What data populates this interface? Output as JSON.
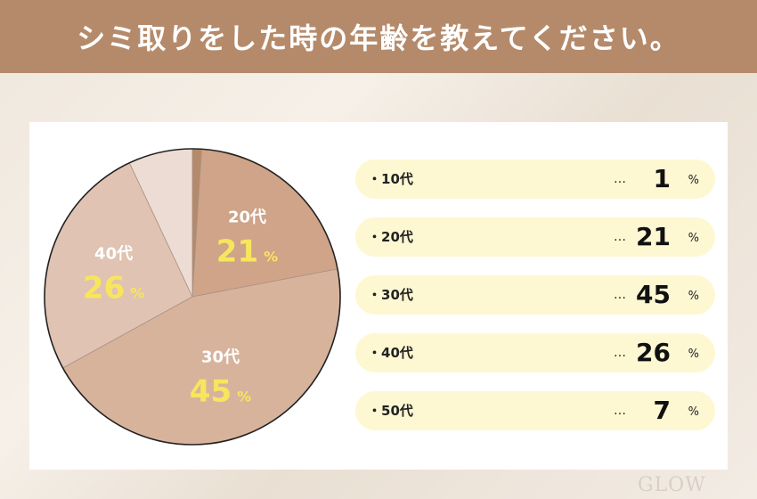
{
  "header": {
    "title": "シミ取りをした時の年齢を教えてください。"
  },
  "chart_data": {
    "type": "pie",
    "title": "シミ取りをした時の年齢を教えてください。",
    "unit": "%",
    "categories": [
      "10代",
      "20代",
      "30代",
      "40代",
      "50代"
    ],
    "values": [
      1,
      21,
      45,
      26,
      7
    ],
    "slice_labels": [
      "",
      "20代",
      "30代",
      "40代",
      ""
    ],
    "start": "top (12 o'clock)",
    "direction": "clockwise",
    "colors": [
      "#b58a6a",
      "#cfa488",
      "#d8b39c",
      "#e0c3b2",
      "#eddcd3"
    ],
    "label_value_color": "#f7e65d"
  },
  "legend": {
    "items": [
      {
        "label": "10代",
        "dots": "…",
        "value": "1",
        "unit": "%"
      },
      {
        "label": "20代",
        "dots": "…",
        "value": "21",
        "unit": "%"
      },
      {
        "label": "30代",
        "dots": "…",
        "value": "45",
        "unit": "%"
      },
      {
        "label": "40代",
        "dots": "…",
        "value": "26",
        "unit": "%"
      },
      {
        "label": "50代",
        "dots": "…",
        "value": "7",
        "unit": "%"
      }
    ]
  },
  "watermark": {
    "text": "GLOW"
  }
}
